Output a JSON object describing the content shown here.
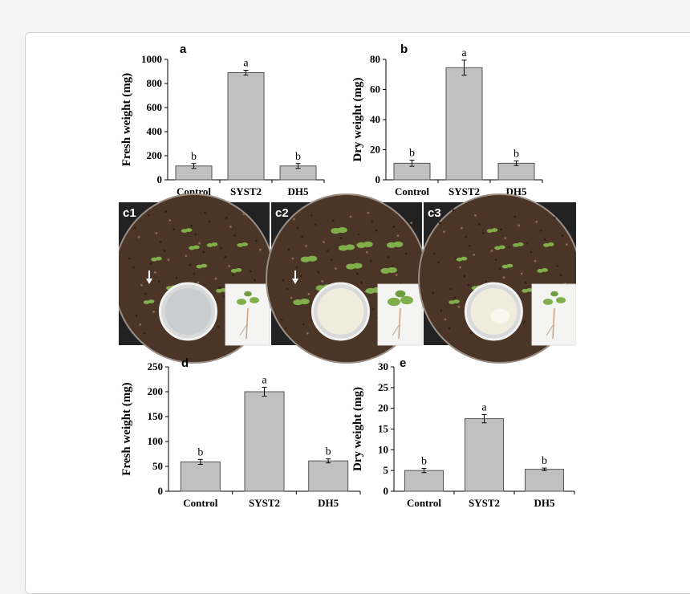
{
  "panel_labels": {
    "a": "a",
    "b": "b",
    "c1": "c1",
    "c2": "c2",
    "c3": "c3",
    "d": "d",
    "e": "e"
  },
  "colors": {
    "bar_fill": "#c0c0c0",
    "bar_stroke": "#555555",
    "soil": "#4a3526",
    "photo_bg": "#222222",
    "leaf": "#7fae4a"
  },
  "photos": [
    {
      "label": "c1",
      "colony": "clear",
      "arrow": true
    },
    {
      "label": "c2",
      "colony": "white",
      "arrow": true
    },
    {
      "label": "c3",
      "colony": "white-lumpy",
      "arrow": false
    }
  ],
  "chart_data": [
    {
      "id": "a",
      "type": "bar",
      "categories": [
        "Control",
        "SYST2",
        "DH5"
      ],
      "values": [
        115,
        890,
        115
      ],
      "errors": [
        20,
        20,
        20
      ],
      "letters": [
        "b",
        "a",
        "b"
      ],
      "ylabel": "Fresh weight (mg)",
      "ylim": [
        0,
        1000
      ],
      "yticks": [
        "0",
        "200",
        "400",
        "600",
        "800",
        "1000"
      ],
      "grid": false
    },
    {
      "id": "b",
      "type": "bar",
      "categories": [
        "Control",
        "SYST2",
        "DH5"
      ],
      "values": [
        11,
        74.5,
        11
      ],
      "errors": [
        2,
        5,
        1.5
      ],
      "letters": [
        "b",
        "a",
        "b"
      ],
      "ylabel": "Dry weight (mg)",
      "ylim": [
        0,
        80
      ],
      "yticks": [
        "0",
        "20",
        "40",
        "60",
        "80"
      ],
      "grid": false
    },
    {
      "id": "d",
      "type": "bar",
      "categories": [
        "Control",
        "SYST2",
        "DH5"
      ],
      "values": [
        59,
        200,
        61
      ],
      "errors": [
        5,
        9,
        4
      ],
      "letters": [
        "b",
        "a",
        "b"
      ],
      "ylabel": "Fresh weight (mg)",
      "ylim": [
        0,
        250
      ],
      "yticks": [
        "0",
        "50",
        "100",
        "150",
        "200",
        "250"
      ],
      "grid": false
    },
    {
      "id": "e",
      "type": "bar",
      "categories": [
        "Control",
        "SYST2",
        "DH5"
      ],
      "values": [
        5,
        17.5,
        5.3
      ],
      "errors": [
        0.5,
        1,
        0.3
      ],
      "letters": [
        "b",
        "a",
        "b"
      ],
      "ylabel": "Dry weight (mg)",
      "ylim": [
        0,
        30
      ],
      "yticks": [
        "0",
        "5",
        "10",
        "15",
        "20",
        "25",
        "30"
      ],
      "grid": false
    }
  ]
}
